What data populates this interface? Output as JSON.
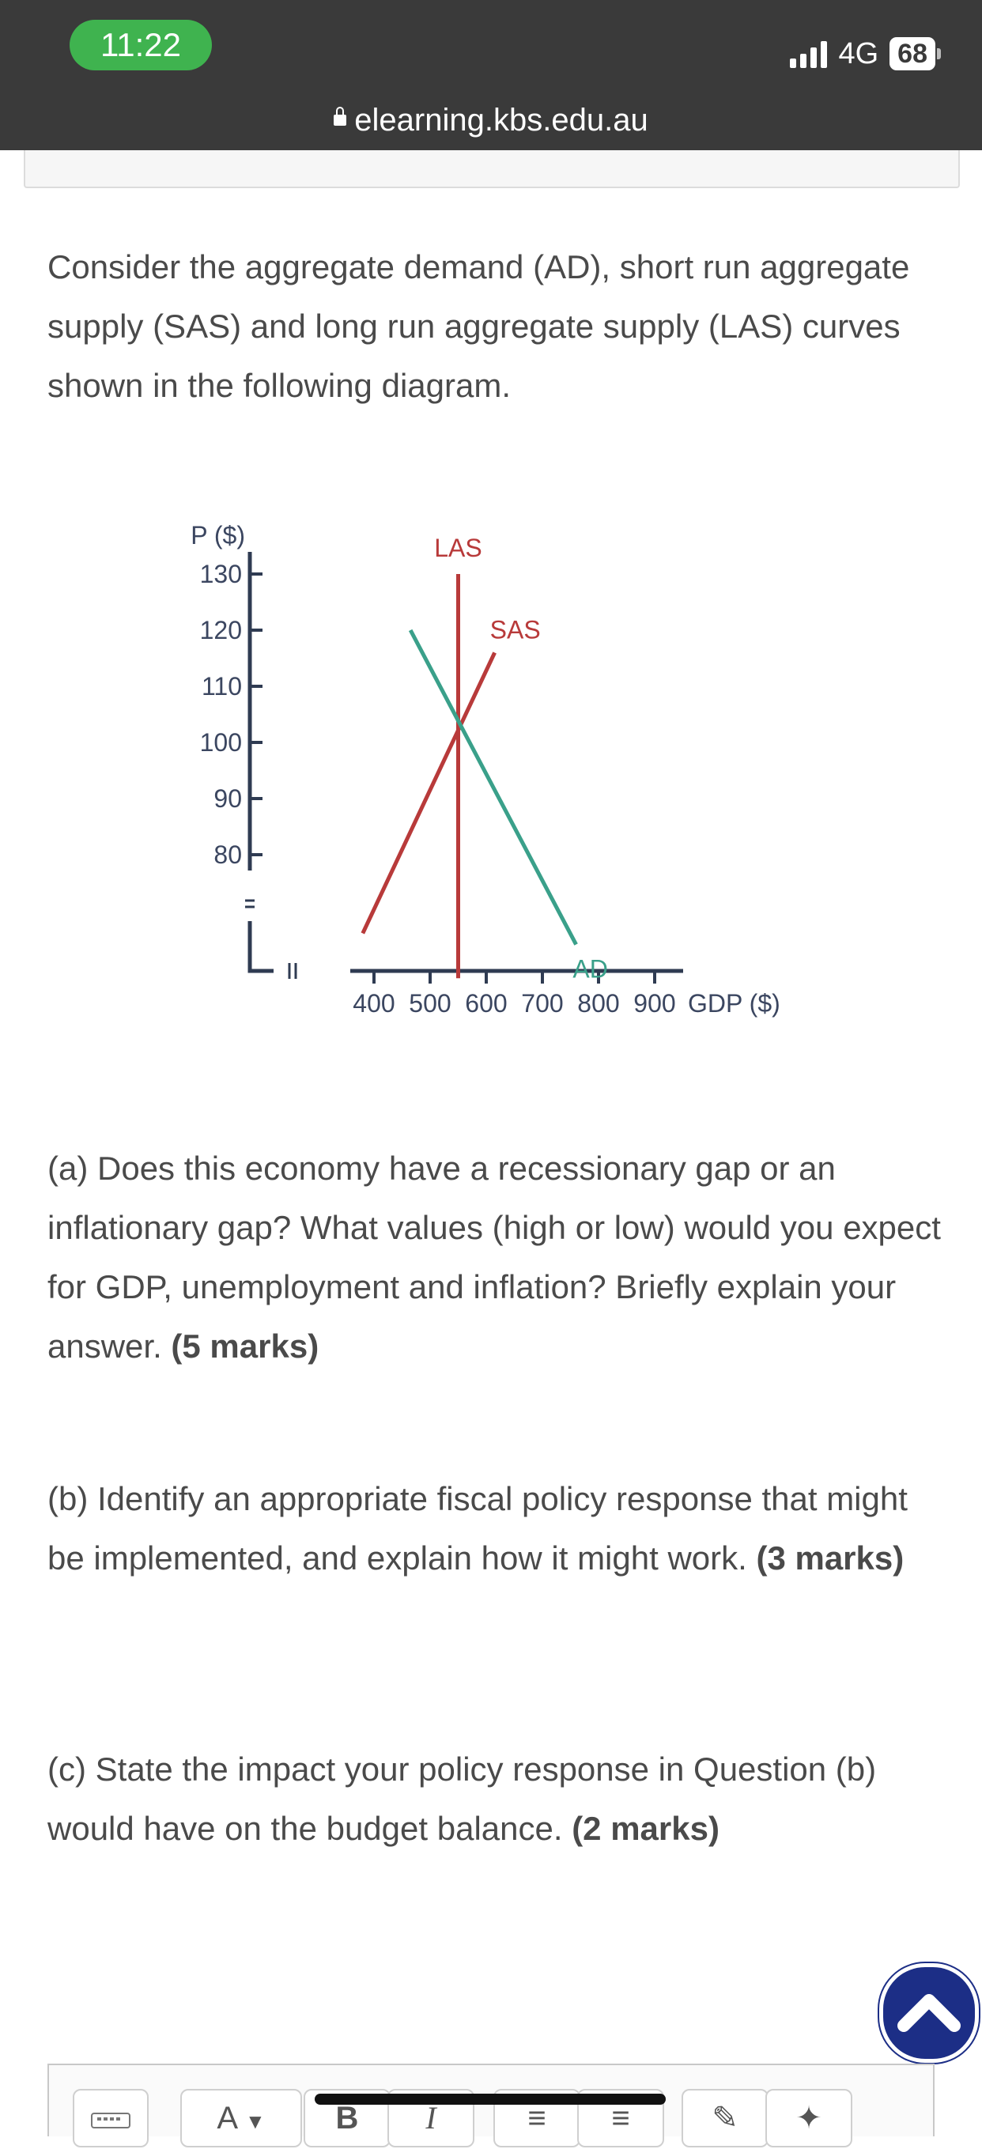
{
  "status_bar": {
    "time": "11:22",
    "network": "4G",
    "battery": "68",
    "colors": {
      "bar": "#3a3a3a",
      "time_pill": "#3fb34f"
    }
  },
  "url_bar": {
    "domain": "elearning.kbs.edu.au",
    "lock_icon": "lock-icon"
  },
  "intro": "Consider the aggregate demand (AD), short run aggregate supply (SAS) and long run aggregate supply (LAS) curves shown in the following diagram.",
  "chart_data": {
    "type": "line",
    "xlabel": "GDP ($)",
    "ylabel": "P ($)",
    "x_ticks": [
      400,
      500,
      600,
      700,
      800,
      900
    ],
    "y_ticks": [
      80,
      90,
      100,
      110,
      120,
      130
    ],
    "xlim": [
      400,
      900
    ],
    "ylim": [
      80,
      130
    ],
    "axis_breaks": true,
    "grid": false,
    "series": [
      {
        "name": "LAS",
        "color": "#b83a3a",
        "x": [
          550,
          550
        ],
        "y": [
          130,
          58
        ]
      },
      {
        "name": "SAS",
        "color": "#b83a3a",
        "x": [
          380,
          615
        ],
        "y": [
          66,
          116
        ]
      },
      {
        "name": "AD",
        "color": "#3aa08a",
        "x": [
          465,
          760
        ],
        "y": [
          120,
          64
        ]
      }
    ]
  },
  "questions": {
    "a": {
      "text": "(a) Does this economy have a recessionary gap or an inflationary gap? What values (high or low) would you expect for GDP, unemployment and inflation? Briefly explain your answer.",
      "marks": "(5 marks)"
    },
    "b": {
      "text": "(b) Identify an appropriate fiscal policy response that might be implemented, and explain how it might work.",
      "marks": "(3 marks)"
    },
    "c": {
      "text": "(c) State the impact your policy response in Question (b) would have on the budget balance.",
      "marks": "(2 marks)"
    }
  },
  "back_to_top": {
    "icon": "chevron-up-icon",
    "color": "#1c2e86"
  },
  "editor_toolbar": {
    "items": [
      "keyboard-icon",
      "font-color-icon",
      "bold-icon",
      "italic-icon",
      "bullet-list-icon",
      "numbered-list-icon",
      "link-icon",
      "unlink-icon"
    ],
    "bold_label": "B",
    "italic_label": "I",
    "font_label": "A"
  }
}
